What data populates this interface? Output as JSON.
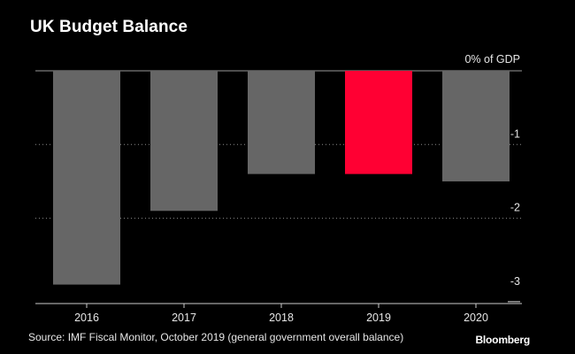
{
  "title": "UK Budget Balance",
  "source": "Source: IMF Fiscal Monitor, October 2019 (general government overall balance)",
  "brand": "Bloomberg",
  "colors": {
    "background": "#000000",
    "bar": "#666666",
    "highlight": "#ff0033",
    "grid": "#8c8c8c",
    "text": "#e6e6e6"
  },
  "chart_data": {
    "type": "bar",
    "title": "UK Budget Balance",
    "categories": [
      "2016",
      "2017",
      "2018",
      "2019",
      "2020"
    ],
    "values": [
      -2.9,
      -1.9,
      -1.4,
      -1.4,
      -1.5
    ],
    "highlight_category": "2019",
    "ylabel": "% of GDP",
    "ylim": [
      -3,
      0
    ],
    "y_ticks": [
      {
        "value": 0,
        "label": "0% of GDP"
      },
      {
        "value": -1,
        "label": "-1"
      },
      {
        "value": -2,
        "label": "-2"
      },
      {
        "value": -3,
        "label": "-3"
      }
    ],
    "grid": true
  }
}
